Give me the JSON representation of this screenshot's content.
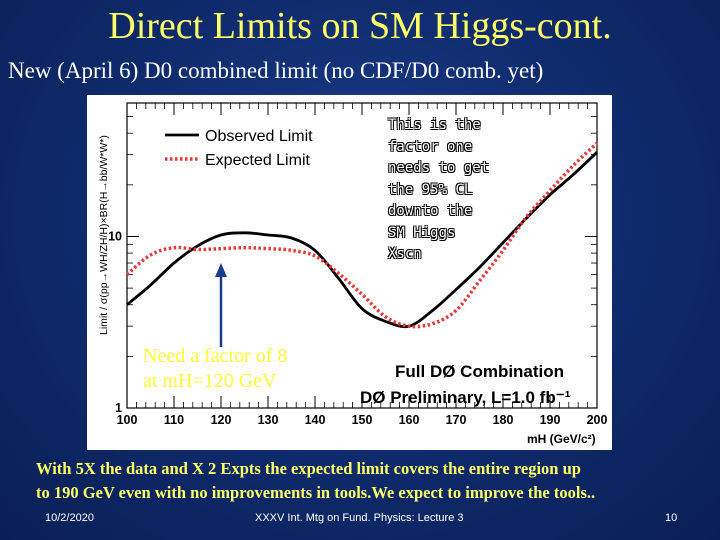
{
  "slide": {
    "title": "Direct Limits on SM Higgs-cont.",
    "subtitle": "New (April 6) D0 combined limit (no CDF/D0 comb. yet)",
    "note_lines": [
      "This is the",
      "factor one",
      "needs to get",
      "the 95% CL",
      "downto the",
      "SM Higgs",
      "Xscn"
    ],
    "factor_lines": [
      "Need a factor of 8",
      "at mH=120 GeV"
    ],
    "conclusion_lines": [
      "With 5X the data and X 2 Expts the expected limit covers the entire region up",
      "to 190 GeV even with no improvements in tools.We expect to improve the tools.."
    ]
  },
  "footer": {
    "date": "10/2/2020",
    "center": "XXXV Int. Mtg on Fund. Physics: Lecture 3",
    "page": "10"
  },
  "chart_data": {
    "type": "line",
    "y_scale": "log",
    "ylim": [
      1,
      60
    ],
    "xlim": [
      100,
      200
    ],
    "x_ticks": [
      "100",
      "110",
      "120",
      "130",
      "140",
      "150",
      "160",
      "170",
      "180",
      "190",
      "200"
    ],
    "y_ticks": [
      "1",
      "10"
    ],
    "ylabel": "Limit / σ(pp→WH/ZH/H)×BR(H→bb/W*W*)",
    "xlabel": "mH (GeV/c²)",
    "legend": {
      "placement": "top-left"
    },
    "series": [
      {
        "name": "Observed Limit",
        "color": "#000000",
        "style": "solid",
        "x": [
          100,
          105,
          110,
          115,
          120,
          125,
          130,
          135,
          140,
          145,
          150,
          155,
          160,
          165,
          170,
          175,
          180,
          185,
          190,
          195,
          200
        ],
        "y": [
          4.0,
          5.2,
          7.0,
          8.8,
          10.2,
          10.5,
          10.2,
          9.8,
          8.3,
          5.7,
          3.8,
          3.2,
          3.0,
          3.7,
          4.9,
          6.6,
          9.2,
          12.8,
          17.5,
          23.0,
          31.0
        ]
      },
      {
        "name": "Expected Limit",
        "color": "#e8393a",
        "style": "dotted",
        "x": [
          100,
          105,
          110,
          115,
          120,
          125,
          130,
          135,
          140,
          145,
          150,
          155,
          160,
          165,
          170,
          175,
          180,
          185,
          190,
          195,
          200
        ],
        "y": [
          6.0,
          7.8,
          8.6,
          8.4,
          8.5,
          8.6,
          8.5,
          8.3,
          7.7,
          6.1,
          4.6,
          3.4,
          3.0,
          3.1,
          3.7,
          5.5,
          8.3,
          13.0,
          18.5,
          26.0,
          35.0
        ]
      }
    ],
    "annotations": [
      "Full DØ Combination",
      "DØ Preliminary, L=1.0 fb⁻¹"
    ],
    "arrow_at_x": 120
  }
}
